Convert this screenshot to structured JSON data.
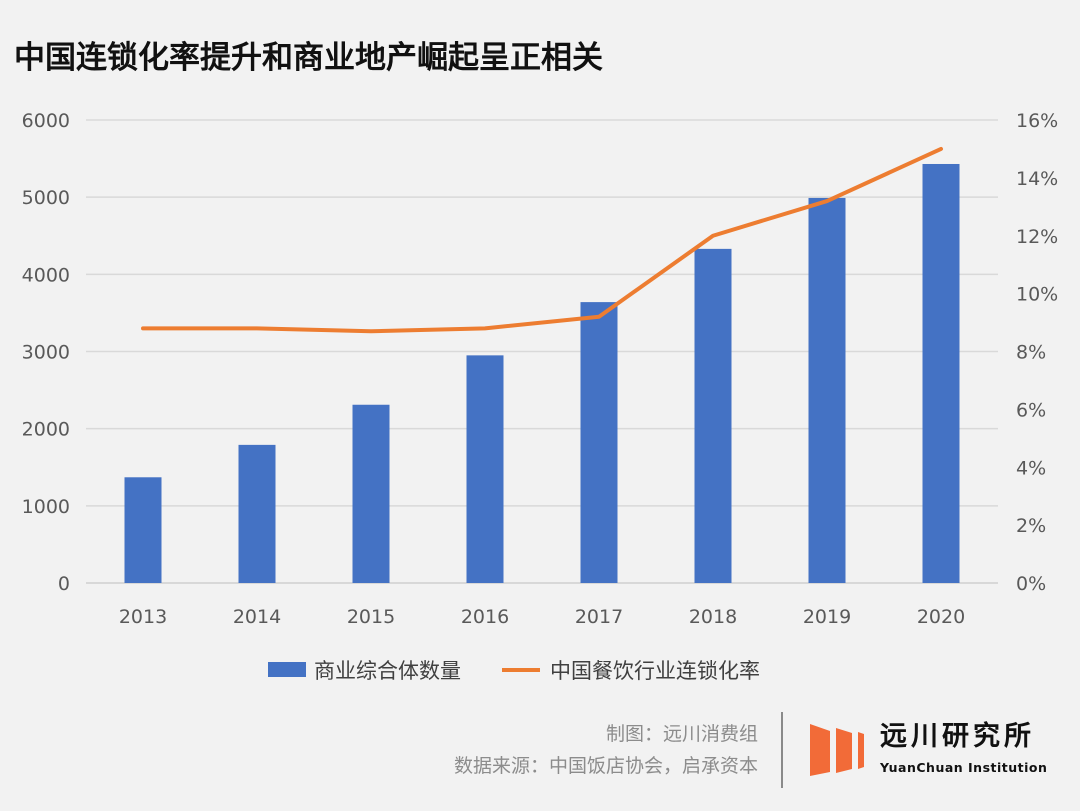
{
  "title": "中国连锁化率提升和商业地产崛起呈正相关",
  "chart_data": {
    "type": "bar+line",
    "categories": [
      "2013",
      "2014",
      "2015",
      "2016",
      "2017",
      "2018",
      "2019",
      "2020"
    ],
    "series": [
      {
        "name": "商业综合体数量",
        "type": "bar",
        "axis": "left",
        "color": "#4472c4",
        "values": [
          1370,
          1790,
          2310,
          2950,
          3640,
          4330,
          4990,
          5430
        ]
      },
      {
        "name": "中国餐饮行业连锁化率",
        "type": "line",
        "axis": "right",
        "color": "#ed7d31",
        "values": [
          8.8,
          8.8,
          8.7,
          8.8,
          9.2,
          12.0,
          13.2,
          15.0
        ]
      }
    ],
    "y_left": {
      "ylim": [
        0,
        6000
      ],
      "ticks": [
        "0",
        "1000",
        "2000",
        "3000",
        "4000",
        "5000",
        "6000"
      ]
    },
    "y_right": {
      "ylim": [
        0,
        16
      ],
      "ticks": [
        "0%",
        "2%",
        "4%",
        "6%",
        "8%",
        "10%",
        "12%",
        "14%",
        "16%"
      ]
    },
    "grid": true,
    "legend": "bottom"
  },
  "credits": {
    "maker": "制图：远川消费组",
    "source": "数据来源：中国饭店协会，启承资本"
  },
  "brand": {
    "name_cn": "远川研究所",
    "name_en": "YuanChuan Institution",
    "color": "#f26b38"
  }
}
